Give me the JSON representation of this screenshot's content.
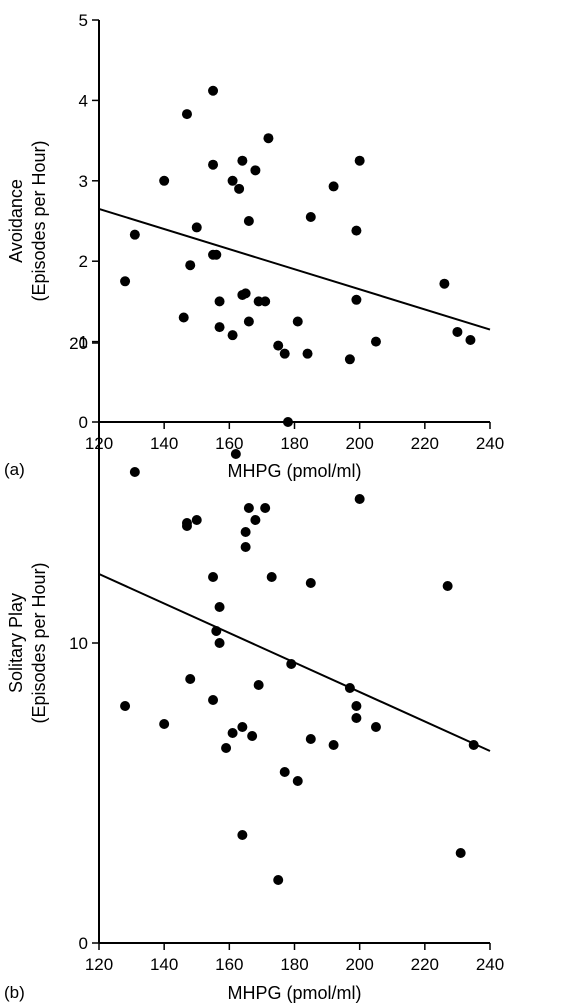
{
  "chart_data": [
    {
      "type": "scatter",
      "panel_label": "(a)",
      "xlabel": "MHPG (pmol/ml)",
      "ylabel_line1": "Avoidance",
      "ylabel_line2": "(Episodes per Hour)",
      "xlim": [
        120,
        240
      ],
      "ylim": [
        0,
        5
      ],
      "xticks": [
        120,
        140,
        160,
        180,
        200,
        220,
        240
      ],
      "yticks": [
        0,
        1,
        2,
        3,
        4,
        5
      ],
      "points": [
        [
          128,
          1.75
        ],
        [
          131,
          2.33
        ],
        [
          140,
          3.0
        ],
        [
          146,
          1.3
        ],
        [
          147,
          3.83
        ],
        [
          148,
          1.95
        ],
        [
          150,
          2.42
        ],
        [
          155,
          3.2
        ],
        [
          155,
          4.12
        ],
        [
          155,
          2.08
        ],
        [
          156,
          2.08
        ],
        [
          157,
          1.5
        ],
        [
          157,
          1.18
        ],
        [
          161,
          1.08
        ],
        [
          161,
          3.0
        ],
        [
          163,
          2.9
        ],
        [
          164,
          1.58
        ],
        [
          164,
          3.25
        ],
        [
          165,
          1.6
        ],
        [
          166,
          2.5
        ],
        [
          166,
          1.25
        ],
        [
          168,
          3.13
        ],
        [
          169,
          1.5
        ],
        [
          171,
          1.5
        ],
        [
          172,
          3.53
        ],
        [
          175,
          0.95
        ],
        [
          177,
          0.85
        ],
        [
          178,
          0.0
        ],
        [
          181,
          1.25
        ],
        [
          184,
          0.85
        ],
        [
          185,
          2.55
        ],
        [
          192,
          2.93
        ],
        [
          197,
          0.78
        ],
        [
          199,
          2.38
        ],
        [
          199,
          1.52
        ],
        [
          200,
          3.25
        ],
        [
          205,
          1.0
        ],
        [
          226,
          1.72
        ],
        [
          230,
          1.12
        ],
        [
          234,
          1.02
        ]
      ],
      "regression": [
        [
          120,
          2.65
        ],
        [
          240,
          1.15
        ]
      ]
    },
    {
      "type": "scatter",
      "panel_label": "(b)",
      "xlabel": "MHPG (pmol/ml)",
      "ylabel_line1": "Solitary Play",
      "ylabel_line2": "(Episodes per Hour)",
      "xlim": [
        120,
        240
      ],
      "ylim": [
        0,
        20
      ],
      "xticks": [
        120,
        140,
        160,
        180,
        200,
        220,
        240
      ],
      "yticks": [
        0,
        10,
        20
      ],
      "points": [
        [
          128,
          7.9
        ],
        [
          131,
          15.7
        ],
        [
          140,
          7.3
        ],
        [
          147,
          13.9
        ],
        [
          147,
          14.0
        ],
        [
          148,
          8.8
        ],
        [
          150,
          14.1
        ],
        [
          155,
          12.2
        ],
        [
          155,
          8.1
        ],
        [
          156,
          10.4
        ],
        [
          157,
          10.0
        ],
        [
          157,
          11.2
        ],
        [
          159,
          6.5
        ],
        [
          161,
          7.0
        ],
        [
          162,
          16.3
        ],
        [
          164,
          7.2
        ],
        [
          164,
          3.6
        ],
        [
          165,
          13.7
        ],
        [
          165,
          13.2
        ],
        [
          166,
          14.5
        ],
        [
          167,
          6.9
        ],
        [
          168,
          14.1
        ],
        [
          169,
          8.6
        ],
        [
          171,
          14.5
        ],
        [
          173,
          12.2
        ],
        [
          175,
          2.1
        ],
        [
          177,
          5.7
        ],
        [
          179,
          9.3
        ],
        [
          181,
          5.4
        ],
        [
          185,
          12.0
        ],
        [
          185,
          6.8
        ],
        [
          192,
          6.6
        ],
        [
          197,
          8.5
        ],
        [
          199,
          7.9
        ],
        [
          199,
          7.5
        ],
        [
          200,
          14.8
        ],
        [
          205,
          7.2
        ],
        [
          227,
          11.9
        ],
        [
          231,
          3.0
        ],
        [
          235,
          6.6
        ]
      ],
      "regression": [
        [
          120,
          12.3
        ],
        [
          240,
          6.4
        ]
      ]
    }
  ]
}
